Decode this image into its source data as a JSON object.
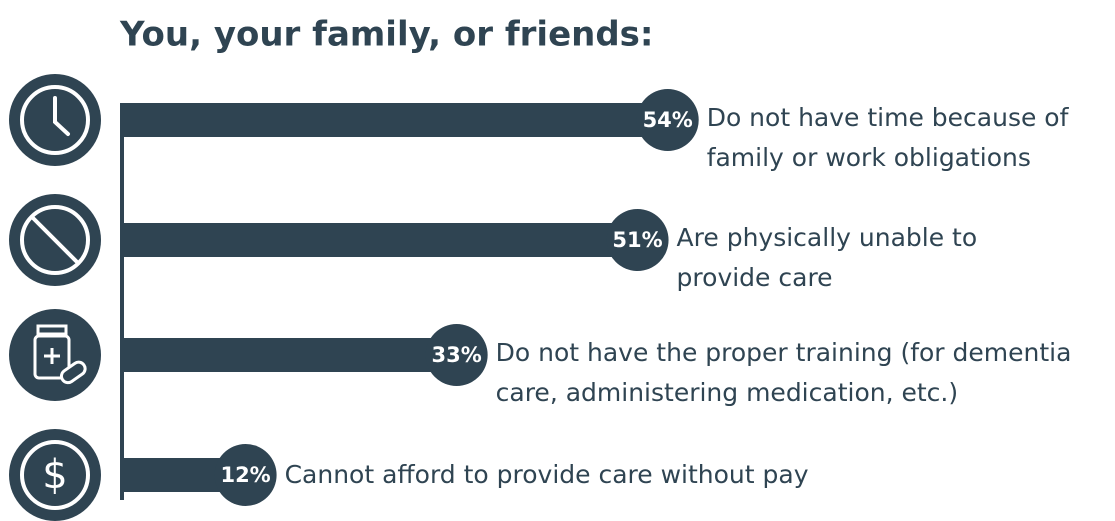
{
  "chart_data": {
    "type": "bar",
    "orientation": "horizontal",
    "title": "You, your family, or friends:",
    "categories": [
      "Do not have time because of family or work obligations",
      "Are physically unable to provide care",
      "Do not have the proper training (for dementia care, administering medication, etc.)",
      "Cannot afford to provide care without pay"
    ],
    "values": [
      54,
      51,
      33,
      12
    ],
    "value_labels": [
      "54%",
      "51%",
      "33%",
      "12%"
    ],
    "color": "#2f4452"
  }
}
